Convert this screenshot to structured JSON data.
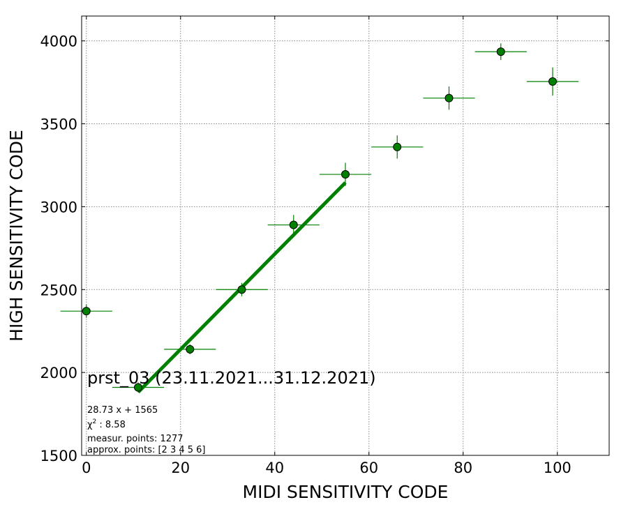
{
  "chart_data": {
    "type": "scatter",
    "xlabel": "MIDI SENSITIVITY CODE",
    "ylabel": "HIGH SENSITIVITY CODE",
    "xlim": [
      -1,
      111
    ],
    "ylim": [
      1500,
      4150
    ],
    "xticks": [
      0,
      20,
      40,
      60,
      80,
      100
    ],
    "yticks": [
      1500,
      2000,
      2500,
      3000,
      3500,
      4000
    ],
    "grid": true,
    "color": "#008000",
    "points": [
      {
        "x": 0,
        "y": 2370,
        "xerr": 5.5,
        "yerr": 40
      },
      {
        "x": 11,
        "y": 1910,
        "xerr": 5.5,
        "yerr": 30
      },
      {
        "x": 22,
        "y": 2140,
        "xerr": 5.5,
        "yerr": 30
      },
      {
        "x": 33,
        "y": 2500,
        "xerr": 5.5,
        "yerr": 40
      },
      {
        "x": 44,
        "y": 2890,
        "xerr": 5.5,
        "yerr": 60
      },
      {
        "x": 55,
        "y": 3195,
        "xerr": 5.5,
        "yerr": 70
      },
      {
        "x": 66,
        "y": 3360,
        "xerr": 5.5,
        "yerr": 70
      },
      {
        "x": 77,
        "y": 3655,
        "xerr": 5.5,
        "yerr": 70
      },
      {
        "x": 88,
        "y": 3935,
        "xerr": 5.5,
        "yerr": 50
      },
      {
        "x": 99,
        "y": 3755,
        "xerr": 5.5,
        "yerr": 85
      }
    ],
    "fit": {
      "slope": 28.73,
      "intercept": 1565,
      "x_range": [
        11,
        55
      ]
    },
    "annotation_title": "prst_03 (23.11.2021...31.12.2021)",
    "annotation_lines": [
      "28.73 x + 1565",
      "χ2 : 8.58",
      "measur. points: 1277",
      "approx. points: [2 3 4 5 6]"
    ]
  }
}
